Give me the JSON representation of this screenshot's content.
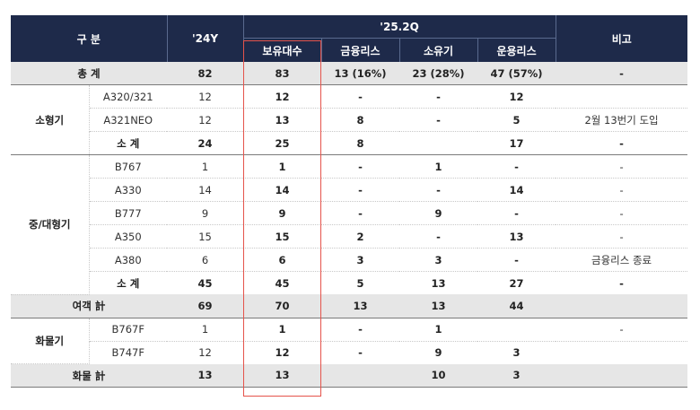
{
  "header": {
    "category": "구 분",
    "y24": "'24Y",
    "q252": "'25.2Q",
    "notes": "비고",
    "sub": [
      "보유대수",
      "금융리스",
      "소유기",
      "운용리스"
    ]
  },
  "total": {
    "label": "총 계",
    "y24": "82",
    "own": "83",
    "fin": "13 (16%)",
    "ownlease": "23 (28%)",
    "op": "47 (57%)",
    "note": "-"
  },
  "small": {
    "group": "소형기",
    "rows": [
      {
        "model": "A320/321",
        "y24": "12",
        "own": "12",
        "fin": "-",
        "ownlease": "-",
        "op": "12",
        "note": ""
      },
      {
        "model": "A321NEO",
        "y24": "12",
        "own": "13",
        "fin": "8",
        "ownlease": "-",
        "op": "5",
        "note": "2월 13번기 도입"
      }
    ],
    "subtotal": {
      "label": "소 계",
      "y24": "24",
      "own": "25",
      "fin": "8",
      "ownlease": "",
      "op": "17",
      "note": "-"
    }
  },
  "large": {
    "group": "중/대형기",
    "rows": [
      {
        "model": "B767",
        "y24": "1",
        "own": "1",
        "fin": "-",
        "ownlease": "1",
        "op": "-",
        "note": "-"
      },
      {
        "model": "A330",
        "y24": "14",
        "own": "14",
        "fin": "-",
        "ownlease": "-",
        "op": "14",
        "note": "-"
      },
      {
        "model": "B777",
        "y24": "9",
        "own": "9",
        "fin": "-",
        "ownlease": "9",
        "op": "-",
        "note": "-"
      },
      {
        "model": "A350",
        "y24": "15",
        "own": "15",
        "fin": "2",
        "ownlease": "-",
        "op": "13",
        "note": "-"
      },
      {
        "model": "A380",
        "y24": "6",
        "own": "6",
        "fin": "3",
        "ownlease": "3",
        "op": "-",
        "note": "금융리스 종료"
      }
    ],
    "subtotal": {
      "label": "소 계",
      "y24": "45",
      "own": "45",
      "fin": "5",
      "ownlease": "13",
      "op": "27",
      "note": "-"
    }
  },
  "passenger_total": {
    "label": "여객 計",
    "y24": "69",
    "own": "70",
    "fin": "13",
    "ownlease": "13",
    "op": "44",
    "note": ""
  },
  "cargo": {
    "group": "화물기",
    "rows": [
      {
        "model": "B767F",
        "y24": "1",
        "own": "1",
        "fin": "-",
        "ownlease": "1",
        "op": "",
        "note": "-"
      },
      {
        "model": "B747F",
        "y24": "12",
        "own": "12",
        "fin": "-",
        "ownlease": "9",
        "op": "3",
        "note": ""
      }
    ]
  },
  "cargo_total": {
    "label": "화물 計",
    "y24": "13",
    "own": "13",
    "fin": "",
    "ownlease": "10",
    "op": "3",
    "note": ""
  }
}
